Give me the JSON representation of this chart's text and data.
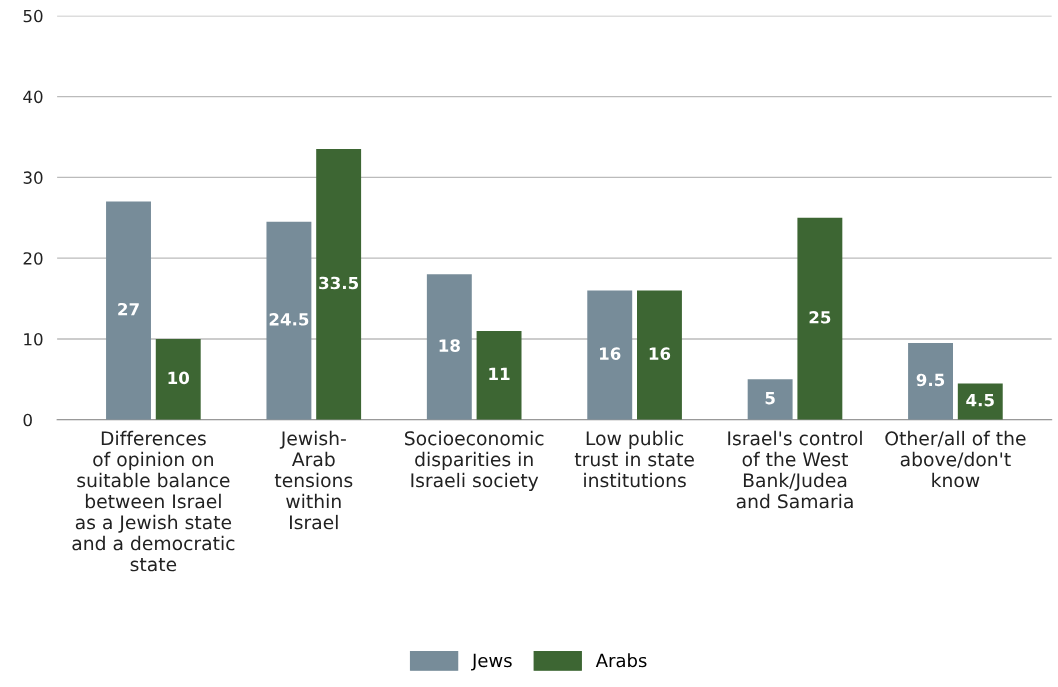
{
  "chart_data": {
    "type": "bar",
    "categories": [
      "Differences\nof opinion on\nsuitable balance\nbetween Israel\nas a Jewish state\nand a democratic\nstate",
      "Jewish-\nArab\ntensions\nwithin\nIsrael",
      "Socioeconomic\ndisparities in\nIsraeli society",
      "Low public\ntrust in state\ninstitutions",
      "Israel's control\nof the West\nBank/Judea\nand Samaria",
      "Other/all of the\nabove/don't\nknow"
    ],
    "series": [
      {
        "name": "Jews",
        "color": "#778c99",
        "values": [
          27,
          24.5,
          18,
          16,
          5,
          9.5
        ]
      },
      {
        "name": "Arabs",
        "color": "#3d6633",
        "values": [
          10,
          33.5,
          11,
          16,
          25,
          4.5
        ]
      }
    ],
    "ylim": [
      0,
      50
    ],
    "yticks": [
      0,
      10,
      20,
      30,
      40,
      50
    ],
    "grid": "y",
    "legend": "bottom",
    "data_labels": true
  }
}
